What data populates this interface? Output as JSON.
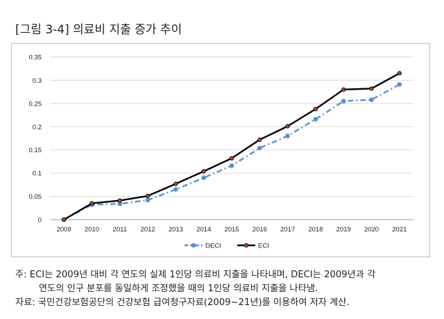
{
  "title": "[그림 3-4] 의료비 지출 증가 추이",
  "chart_data": {
    "type": "line",
    "title": "",
    "xlabel": "",
    "ylabel": "",
    "categories": [
      "2009",
      "2010",
      "2011",
      "2012",
      "2013",
      "2014",
      "2015",
      "2016",
      "2017",
      "2018",
      "2019",
      "2020",
      "2021"
    ],
    "ylim": [
      0,
      0.35
    ],
    "yticks": [
      "0",
      "0.05",
      "0.1",
      "0.15",
      "0.2",
      "0.25",
      "0.3",
      "0.35"
    ],
    "grid": true,
    "legend_position": "bottom",
    "series": [
      {
        "name": "DECI",
        "color": "#5b8fcf",
        "style": "dash-dot",
        "values": [
          0.0,
          0.032,
          0.034,
          0.042,
          0.065,
          0.09,
          0.116,
          0.154,
          0.18,
          0.216,
          0.255,
          0.258,
          0.291
        ]
      },
      {
        "name": "ECI",
        "color": "#000000",
        "marker_color": "#b5542a",
        "style": "solid",
        "values": [
          0.0,
          0.035,
          0.041,
          0.051,
          0.077,
          0.104,
          0.132,
          0.172,
          0.201,
          0.238,
          0.28,
          0.282,
          0.315
        ]
      }
    ]
  },
  "notes": {
    "line1": "주: ECI는 2009년 대비 각 연도의 실제 1인당 의료비 지출을 나타내며, DECI는 2009년과 각",
    "line2": "연도의 인구 분포를 동일하게 조정했을 때의 1인당 의료비 지출을 나타냄.",
    "line3": "자료: 국민건강보험공단의 건강보험 급여청구자료(2009~21년)를 이용하여 저자 계산."
  }
}
